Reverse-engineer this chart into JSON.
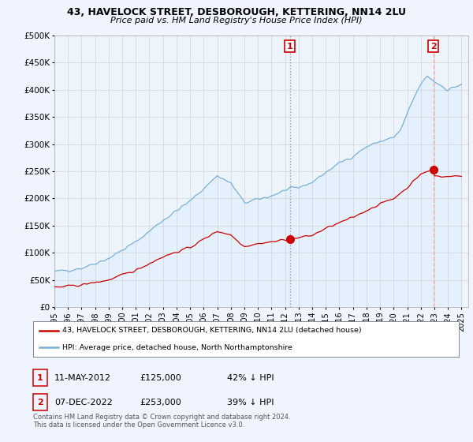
{
  "title1": "43, HAVELOCK STREET, DESBOROUGH, KETTERING, NN14 2LU",
  "title2": "Price paid vs. HM Land Registry's House Price Index (HPI)",
  "ylim": [
    0,
    500000
  ],
  "yticks": [
    0,
    50000,
    100000,
    150000,
    200000,
    250000,
    300000,
    350000,
    400000,
    450000,
    500000
  ],
  "ytick_labels": [
    "£0",
    "£50K",
    "£100K",
    "£150K",
    "£200K",
    "£250K",
    "£300K",
    "£350K",
    "£400K",
    "£450K",
    "£500K"
  ],
  "hpi_color": "#7ab0d4",
  "price_color": "#cc0000",
  "point1_date_num": 2012.36,
  "point1_price": 125000,
  "point1_label": "1",
  "point1_vline_color": "#9999aa",
  "point1_vline_style": "dotted",
  "point2_date_num": 2022.92,
  "point2_price": 253000,
  "point2_label": "2",
  "point2_vline_color": "#ffaaaa",
  "point2_vline_style": "dashed",
  "shade_color": "#ddeeff",
  "legend_entry1": "43, HAVELOCK STREET, DESBOROUGH, KETTERING, NN14 2LU (detached house)",
  "legend_entry2": "HPI: Average price, detached house, North Northamptonshire",
  "annotation1_date": "11-MAY-2012",
  "annotation1_price": "£125,000",
  "annotation1_below": "42% ↓ HPI",
  "annotation2_date": "07-DEC-2022",
  "annotation2_price": "£253,000",
  "annotation2_below": "39% ↓ HPI",
  "footer": "Contains HM Land Registry data © Crown copyright and database right 2024.\nThis data is licensed under the Open Government Licence v3.0.",
  "bg_color": "#f0f4ff",
  "plot_bg_color": "#ffffff",
  "grid_color": "#cccccc",
  "xlim_start": 1995,
  "xlim_end": 2025.5
}
